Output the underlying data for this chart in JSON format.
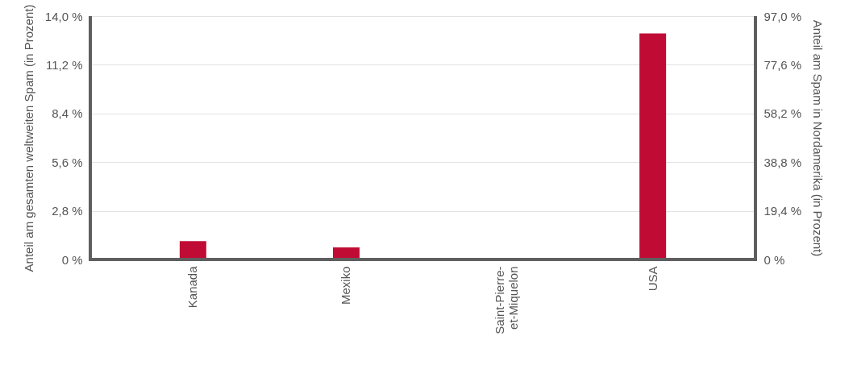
{
  "chart_data": {
    "type": "bar",
    "ylabel": "Anteil am gesamten weltweiten Spam (in Prozent)",
    "y2label": "Anteil am Spam in Nordamerika (in Prozent)",
    "categories": [
      "Kanada",
      "Mexiko",
      "Saint-Pierre-et-Miquelon",
      "USA"
    ],
    "series": [
      {
        "color": "#c00c35",
        "values": [
          1.05,
          0.7,
          0,
          13.0
        ]
      }
    ],
    "ylim": [
      0,
      14
    ],
    "yticks": [
      {
        "value": 0,
        "label": "0 %"
      },
      {
        "value": 2.8,
        "label": "2,8 %"
      },
      {
        "value": 5.6,
        "label": "5,6 %"
      },
      {
        "value": 8.4,
        "label": "8,4 %"
      },
      {
        "value": 11.2,
        "label": "11,2 %"
      },
      {
        "value": 14,
        "label": "14,0 %"
      }
    ],
    "y2lim": [
      0,
      97
    ],
    "y2ticks": [
      {
        "value": 0,
        "label": "0 %"
      },
      {
        "value": 19.4,
        "label": "19,4 %"
      },
      {
        "value": 38.8,
        "label": "38,8 %"
      },
      {
        "value": 58.2,
        "label": "58,2 %"
      },
      {
        "value": 77.6,
        "label": "77,6 %"
      },
      {
        "value": 97,
        "label": "97,0 %"
      }
    ],
    "grid": "y"
  }
}
